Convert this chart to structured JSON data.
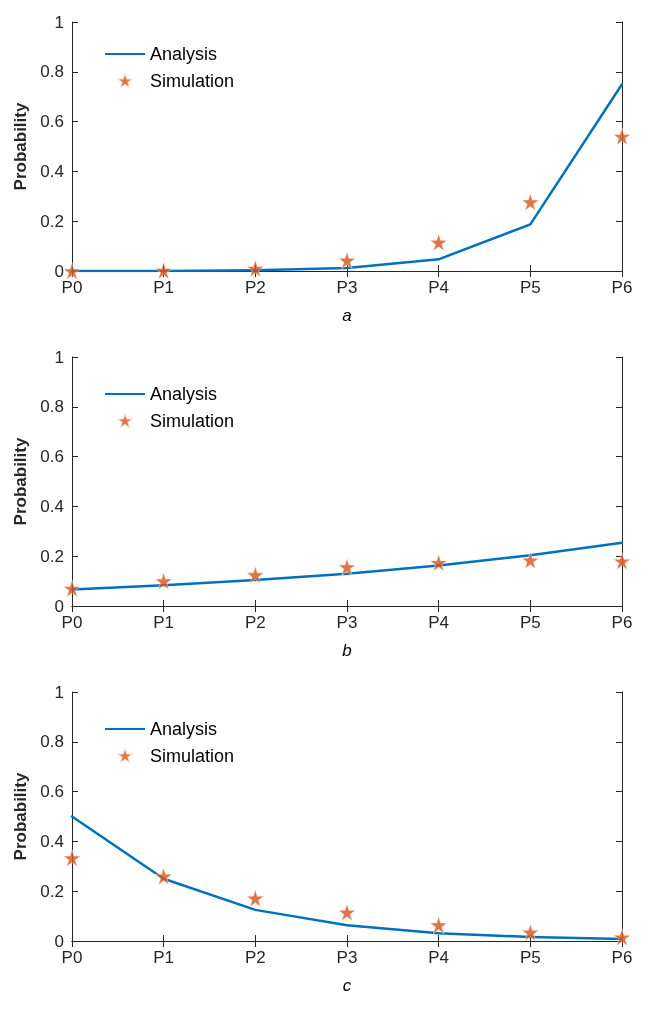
{
  "chart_data": [
    {
      "type": "line",
      "xlabel": "a",
      "ylabel": "Probability",
      "categories": [
        "P0",
        "P1",
        "P2",
        "P3",
        "P4",
        "P5",
        "P6"
      ],
      "ylim": [
        0,
        1
      ],
      "yticks": [
        0,
        0.2,
        0.4,
        0.6,
        0.8,
        1
      ],
      "grid": false,
      "legend": "top left",
      "series": [
        {
          "name": "Analysis",
          "color": "#0072bd",
          "marker": "none",
          "line_style": "solid",
          "values": [
            0,
            0,
            0.003,
            0.012,
            0.047,
            0.187,
            0.75
          ]
        },
        {
          "name": "Simulation",
          "type": "scatter",
          "color": "#d95319",
          "marker": "star",
          "values": [
            0,
            0.002,
            0.01,
            0.043,
            0.115,
            0.277,
            0.54
          ]
        }
      ]
    },
    {
      "type": "line",
      "xlabel": "b",
      "ylabel": "Probability",
      "categories": [
        "P0",
        "P1",
        "P2",
        "P3",
        "P4",
        "P5",
        "P6"
      ],
      "ylim": [
        0,
        1
      ],
      "yticks": [
        0,
        0.2,
        0.4,
        0.6,
        0.8,
        1
      ],
      "grid": false,
      "legend": "top left",
      "series": [
        {
          "name": "Analysis",
          "color": "#0072bd",
          "marker": "none",
          "line_style": "solid",
          "values": [
            0.066,
            0.083,
            0.104,
            0.13,
            0.163,
            0.204,
            0.254
          ]
        },
        {
          "name": "Simulation",
          "type": "scatter",
          "color": "#d95319",
          "marker": "star",
          "values": [
            0.07,
            0.1,
            0.125,
            0.157,
            0.174,
            0.184,
            0.18
          ]
        }
      ]
    },
    {
      "type": "line",
      "xlabel": "c",
      "ylabel": "Probability",
      "categories": [
        "P0",
        "P1",
        "P2",
        "P3",
        "P4",
        "P5",
        "P6"
      ],
      "ylim": [
        0,
        1
      ],
      "yticks": [
        0,
        0.2,
        0.4,
        0.6,
        0.8,
        1
      ],
      "grid": false,
      "legend": "top left",
      "series": [
        {
          "name": "Analysis",
          "color": "#0072bd",
          "marker": "none",
          "line_style": "solid",
          "values": [
            0.5,
            0.25,
            0.125,
            0.063,
            0.031,
            0.016,
            0.008
          ]
        },
        {
          "name": "Simulation",
          "type": "scatter",
          "color": "#d95319",
          "marker": "star",
          "values": [
            0.333,
            0.26,
            0.172,
            0.115,
            0.064,
            0.035,
            0.015
          ]
        }
      ]
    }
  ]
}
